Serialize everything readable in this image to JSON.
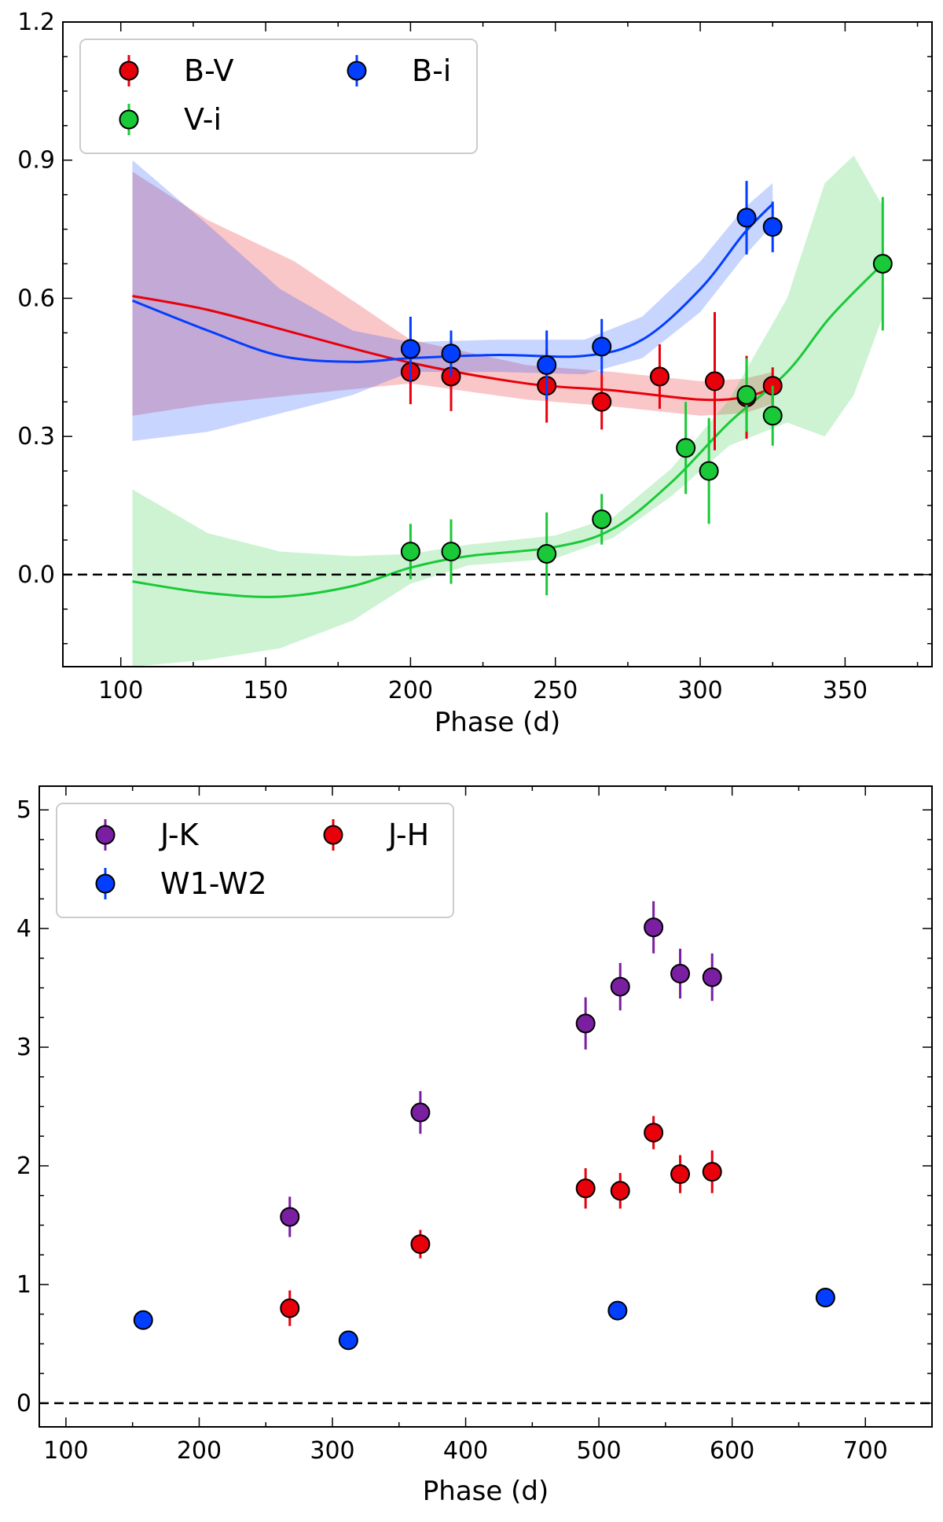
{
  "chart_data": [
    {
      "type": "scatter",
      "title": "",
      "xlabel": "Phase (d)",
      "ylabel": "",
      "xlim": [
        80,
        380
      ],
      "ylim": [
        -0.2,
        1.2
      ],
      "xticks": [
        100,
        150,
        200,
        250,
        300,
        350
      ],
      "yticks": [
        0.0,
        0.3,
        0.6,
        0.9,
        1.2
      ],
      "xtick_labels": [
        "100",
        "150",
        "200",
        "250",
        "300",
        "350"
      ],
      "ytick_labels": [
        "0.0",
        "0.3",
        "0.6",
        "0.9",
        "1.2"
      ],
      "reference_line_y": 0.0,
      "legend": {
        "placement": "top-left",
        "columns": 2
      },
      "series": [
        {
          "name": "B-V",
          "color": "#e8000b",
          "points": [
            {
              "x": 200,
              "y": 0.44,
              "err": 0.07
            },
            {
              "x": 214,
              "y": 0.43,
              "err": 0.075
            },
            {
              "x": 247,
              "y": 0.41,
              "err": 0.08
            },
            {
              "x": 266,
              "y": 0.375,
              "err": 0.06
            },
            {
              "x": 286,
              "y": 0.43,
              "err": 0.07
            },
            {
              "x": 305,
              "y": 0.42,
              "err": 0.15
            },
            {
              "x": 316,
              "y": 0.385,
              "err": 0.09
            },
            {
              "x": 325,
              "y": 0.41,
              "err": 0.04
            }
          ],
          "fit": [
            [
              104,
              0.605
            ],
            [
              130,
              0.575
            ],
            [
              160,
              0.525
            ],
            [
              200,
              0.46
            ],
            [
              240,
              0.415
            ],
            [
              270,
              0.4
            ],
            [
              300,
              0.38
            ],
            [
              315,
              0.385
            ],
            [
              325,
              0.405
            ]
          ],
          "band": [
            [
              104,
              0.345,
              0.875
            ],
            [
              130,
              0.37,
              0.77
            ],
            [
              160,
              0.39,
              0.68
            ],
            [
              200,
              0.415,
              0.51
            ],
            [
              240,
              0.38,
              0.455
            ],
            [
              270,
              0.365,
              0.44
            ],
            [
              300,
              0.345,
              0.42
            ],
            [
              315,
              0.35,
              0.425
            ],
            [
              325,
              0.37,
              0.44
            ]
          ]
        },
        {
          "name": "B-i",
          "color": "#023eff",
          "points": [
            {
              "x": 200,
              "y": 0.49,
              "err": 0.07
            },
            {
              "x": 214,
              "y": 0.48,
              "err": 0.05
            },
            {
              "x": 247,
              "y": 0.455,
              "err": 0.075
            },
            {
              "x": 266,
              "y": 0.495,
              "err": 0.06
            },
            {
              "x": 316,
              "y": 0.775,
              "err": 0.08
            },
            {
              "x": 325,
              "y": 0.755,
              "err": 0.055
            }
          ],
          "fit": [
            [
              104,
              0.595
            ],
            [
              130,
              0.53
            ],
            [
              155,
              0.475
            ],
            [
              180,
              0.462
            ],
            [
              200,
              0.47
            ],
            [
              230,
              0.477
            ],
            [
              260,
              0.475
            ],
            [
              280,
              0.51
            ],
            [
              300,
              0.62
            ],
            [
              315,
              0.74
            ],
            [
              325,
              0.805
            ]
          ],
          "band": [
            [
              104,
              0.29,
              0.9
            ],
            [
              130,
              0.31,
              0.76
            ],
            [
              155,
              0.35,
              0.62
            ],
            [
              180,
              0.39,
              0.53
            ],
            [
              200,
              0.44,
              0.505
            ],
            [
              230,
              0.44,
              0.51
            ],
            [
              260,
              0.435,
              0.51
            ],
            [
              280,
              0.47,
              0.56
            ],
            [
              300,
              0.57,
              0.68
            ],
            [
              315,
              0.69,
              0.795
            ],
            [
              325,
              0.76,
              0.85
            ]
          ]
        },
        {
          "name": "V-i",
          "color": "#1ac938",
          "points": [
            {
              "x": 200,
              "y": 0.05,
              "err": 0.06
            },
            {
              "x": 214,
              "y": 0.05,
              "err": 0.07
            },
            {
              "x": 247,
              "y": 0.045,
              "err": 0.09
            },
            {
              "x": 266,
              "y": 0.12,
              "err": 0.055
            },
            {
              "x": 295,
              "y": 0.275,
              "err": 0.1
            },
            {
              "x": 303,
              "y": 0.225,
              "err": 0.115
            },
            {
              "x": 316,
              "y": 0.39,
              "err": 0.08
            },
            {
              "x": 325,
              "y": 0.345,
              "err": 0.065
            },
            {
              "x": 363,
              "y": 0.675,
              "err": 0.145
            }
          ],
          "fit": [
            [
              104,
              -0.015
            ],
            [
              130,
              -0.04
            ],
            [
              155,
              -0.048
            ],
            [
              180,
              -0.025
            ],
            [
              200,
              0.015
            ],
            [
              220,
              0.04
            ],
            [
              250,
              0.06
            ],
            [
              270,
              0.1
            ],
            [
              290,
              0.2
            ],
            [
              310,
              0.33
            ],
            [
              330,
              0.44
            ],
            [
              345,
              0.56
            ],
            [
              363,
              0.675
            ]
          ],
          "band": [
            [
              104,
              -0.2,
              0.185
            ],
            [
              130,
              -0.185,
              0.09
            ],
            [
              155,
              -0.16,
              0.05
            ],
            [
              180,
              -0.1,
              0.04
            ],
            [
              200,
              -0.02,
              0.045
            ],
            [
              220,
              0.02,
              0.065
            ],
            [
              250,
              0.035,
              0.085
            ],
            [
              270,
              0.08,
              0.125
            ],
            [
              290,
              0.17,
              0.23
            ],
            [
              310,
              0.28,
              0.38
            ],
            [
              330,
              0.33,
              0.6
            ],
            [
              343,
              0.3,
              0.85
            ],
            [
              353,
              0.39,
              0.91
            ],
            [
              363,
              0.56,
              0.8
            ]
          ]
        }
      ]
    },
    {
      "type": "scatter",
      "title": "",
      "xlabel": "Phase (d)",
      "ylabel": "",
      "xlim": [
        80,
        750
      ],
      "ylim": [
        -0.2,
        5.2
      ],
      "xticks": [
        100,
        200,
        300,
        400,
        500,
        600,
        700
      ],
      "yticks": [
        0,
        1,
        2,
        3,
        4,
        5
      ],
      "xtick_labels": [
        "100",
        "200",
        "300",
        "400",
        "500",
        "600",
        "700"
      ],
      "ytick_labels": [
        "0",
        "1",
        "2",
        "3",
        "4",
        "5"
      ],
      "reference_line_y": 0,
      "legend": {
        "placement": "top-left",
        "columns": 2
      },
      "series": [
        {
          "name": "J-K",
          "color": "#7a1fa2",
          "points": [
            {
              "x": 268,
              "y": 1.57,
              "err": 0.17
            },
            {
              "x": 366,
              "y": 2.45,
              "err": 0.18
            },
            {
              "x": 490,
              "y": 3.2,
              "err": 0.22
            },
            {
              "x": 516,
              "y": 3.51,
              "err": 0.2
            },
            {
              "x": 541,
              "y": 4.01,
              "err": 0.22
            },
            {
              "x": 561,
              "y": 3.62,
              "err": 0.21
            },
            {
              "x": 585,
              "y": 3.59,
              "err": 0.2
            }
          ]
        },
        {
          "name": "J-H",
          "color": "#e8000b",
          "points": [
            {
              "x": 268,
              "y": 0.8,
              "err": 0.15
            },
            {
              "x": 366,
              "y": 1.34,
              "err": 0.12
            },
            {
              "x": 490,
              "y": 1.81,
              "err": 0.17
            },
            {
              "x": 516,
              "y": 1.79,
              "err": 0.15
            },
            {
              "x": 541,
              "y": 2.28,
              "err": 0.14
            },
            {
              "x": 561,
              "y": 1.93,
              "err": 0.16
            },
            {
              "x": 585,
              "y": 1.95,
              "err": 0.18
            }
          ]
        },
        {
          "name": "W1-W2",
          "color": "#023eff",
          "points": [
            {
              "x": 158,
              "y": 0.7,
              "err": 0.0
            },
            {
              "x": 312,
              "y": 0.53,
              "err": 0.0
            },
            {
              "x": 514,
              "y": 0.78,
              "err": 0.0
            },
            {
              "x": 670,
              "y": 0.89,
              "err": 0.0
            }
          ]
        }
      ]
    }
  ]
}
